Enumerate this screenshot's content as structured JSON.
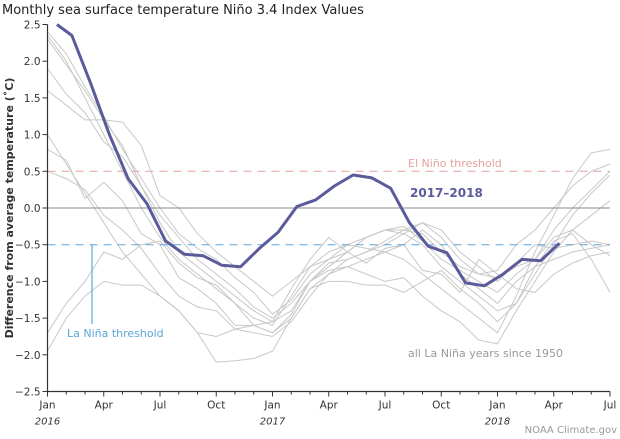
{
  "chart_data": {
    "type": "line",
    "title": "Monthly sea surface temperature Niño 3.4 Index Values",
    "ylabel": "Difference from average temperature (˚C)",
    "xlabel": "",
    "ylim": [
      -2.5,
      2.5
    ],
    "xlim": [
      "2016-01",
      "2018-07"
    ],
    "yticks": [
      "2.5",
      "2.0",
      "1.5",
      "1.0",
      "0.5",
      "0.0",
      "−0.5",
      "−1.0",
      "−1.5",
      "−2.0",
      "−2.5"
    ],
    "ytick_values": [
      2.5,
      2.0,
      1.5,
      1.0,
      0.5,
      0.0,
      -0.5,
      -1.0,
      -1.5,
      -2.0,
      -2.5
    ],
    "xticks": [
      {
        "label": "Jan",
        "year": "2016",
        "date": "2016-01"
      },
      {
        "label": "Apr",
        "year": "",
        "date": "2016-04"
      },
      {
        "label": "Jul",
        "year": "",
        "date": "2016-07"
      },
      {
        "label": "Oct",
        "year": "",
        "date": "2016-10"
      },
      {
        "label": "Jan",
        "year": "2017",
        "date": "2017-01"
      },
      {
        "label": "Apr",
        "year": "",
        "date": "2017-04"
      },
      {
        "label": "Jul",
        "year": "",
        "date": "2017-07"
      },
      {
        "label": "Oct",
        "year": "",
        "date": "2017-10"
      },
      {
        "label": "Jan",
        "year": "2018",
        "date": "2018-01"
      },
      {
        "label": "Apr",
        "year": "",
        "date": "2018-04"
      },
      {
        "label": "Jul",
        "year": "",
        "date": "2018-07"
      }
    ],
    "grid": false,
    "thresholds": [
      {
        "label": "El Niño threshold",
        "value": 0.5,
        "color": "#e8a0a0"
      },
      {
        "label": "La Niña threshold",
        "value": -0.5,
        "color": "#5aa6d8"
      }
    ],
    "highlight": {
      "name": "2017–2018",
      "color": "#5b5b9c",
      "dates": [
        "2016-01",
        "2016-02",
        "2016-03",
        "2016-04",
        "2016-05",
        "2016-06",
        "2016-07",
        "2016-08",
        "2016-09",
        "2016-10",
        "2016-11",
        "2016-12",
        "2017-01",
        "2017-02",
        "2017-03",
        "2017-04",
        "2017-05",
        "2017-06",
        "2017-07",
        "2017-08",
        "2017-09",
        "2017-10",
        "2017-11",
        "2017-12",
        "2018-01",
        "2018-02",
        "2018-03",
        "2018-04"
      ],
      "values": [
        2.5,
        2.35,
        1.7,
        1.0,
        0.4,
        0.06,
        -0.45,
        -0.63,
        -0.65,
        -0.78,
        -0.8,
        -0.55,
        -0.33,
        0.02,
        0.11,
        0.3,
        0.45,
        0.41,
        0.27,
        -0.2,
        -0.52,
        -0.61,
        -1.02,
        -1.06,
        -0.9,
        -0.7,
        -0.72,
        -0.48
      ]
    },
    "background_series": {
      "name": "all La Niña years since 1950",
      "color": "#c8c8c8",
      "start": "2016-01",
      "series": [
        {
          "values": [
            2.35,
            2.0,
            1.5,
            1.0,
            0.5,
            0.0,
            -0.4,
            -0.7,
            -0.9,
            -1.1,
            -1.3,
            -1.5,
            -1.6,
            -1.2,
            -0.8,
            -0.6,
            -0.5,
            -0.55,
            -0.6,
            -0.7,
            -0.9,
            -1.1,
            -1.3,
            -1.5,
            -1.7,
            -1.2,
            -0.6,
            -0.1,
            0.4,
            0.75,
            0.8
          ]
        },
        {
          "values": [
            2.3,
            1.95,
            1.6,
            1.2,
            0.85,
            0.3,
            -0.2,
            -0.6,
            -0.8,
            -1.0,
            -1.2,
            -1.4,
            -1.55,
            -1.4,
            -1.0,
            -0.8,
            -0.6,
            -0.4,
            -0.3,
            -0.35,
            -0.5,
            -0.8,
            -1.0,
            -1.2,
            -1.4,
            -1.3,
            -0.9,
            -0.5,
            -0.1,
            0.2,
            0.45
          ]
        },
        {
          "values": [
            1.9,
            1.55,
            1.3,
            0.9,
            0.7,
            0.3,
            -0.1,
            -0.4,
            -0.7,
            -0.9,
            -1.1,
            -1.35,
            -1.5,
            -1.3,
            -1.0,
            -0.75,
            -0.7,
            -0.6,
            -0.45,
            -0.3,
            -0.2,
            -0.4,
            -0.7,
            -0.9,
            -0.95,
            -0.8,
            -0.7,
            -0.4,
            -0.3,
            -0.1,
            0.1
          ]
        },
        {
          "values": [
            1.6,
            1.4,
            1.2,
            1.2,
            1.17,
            0.85,
            0.17,
            0.0,
            -0.35,
            -0.6,
            -0.8,
            -1.0,
            -1.2,
            -1.0,
            -0.8,
            -0.7,
            -0.6,
            -0.4,
            -0.3,
            -0.3,
            -0.35,
            -0.6,
            -0.8,
            -0.9,
            -0.85,
            -0.5,
            -0.3,
            0.0,
            0.3,
            0.5,
            0.6
          ]
        },
        {
          "values": [
            0.8,
            0.65,
            0.13,
            0.35,
            0.1,
            -0.35,
            -0.5,
            -0.95,
            -1.1,
            -1.3,
            -1.6,
            -1.6,
            -1.7,
            -1.5,
            -1.1,
            -0.9,
            -0.7,
            -0.6,
            -0.5,
            -0.35,
            -0.2,
            -0.3,
            -0.6,
            -0.8,
            -1.0,
            -0.75,
            -0.5,
            -0.55,
            -0.5,
            -0.45,
            -0.5
          ]
        },
        {
          "values": [
            0.5,
            0.4,
            0.25,
            -0.1,
            -0.3,
            -0.55,
            -0.9,
            -1.2,
            -1.35,
            -1.4,
            -1.65,
            -1.7,
            -1.75,
            -1.55,
            -1.2,
            -0.9,
            -0.8,
            -0.7,
            -0.6,
            -0.5,
            -0.3,
            -0.5,
            -0.9,
            -1.1,
            -1.3,
            -1.0,
            -0.8,
            -0.7,
            -0.6,
            -0.55,
            -0.5
          ]
        },
        {
          "values": [
            -1.7,
            -1.3,
            -1.0,
            -0.6,
            -0.7,
            -0.5,
            -0.45,
            -0.75,
            -0.95,
            -1.05,
            -1.3,
            -1.6,
            -1.55,
            -1.1,
            -0.7,
            -0.4,
            -0.6,
            -0.75,
            -0.55,
            -0.5,
            -0.85,
            -0.9,
            -1.15,
            -0.7,
            -0.9,
            -1.1,
            -1.15,
            -0.9,
            -0.75,
            -0.65,
            -0.6
          ]
        },
        {
          "values": [
            -1.95,
            -1.5,
            -1.2,
            -1.0,
            -1.05,
            -1.05,
            -1.2,
            -1.4,
            -1.7,
            -1.75,
            -1.65,
            -1.6,
            -1.7,
            -1.45,
            -1.0,
            -0.85,
            -0.8,
            -0.9,
            -1.0,
            -0.95,
            -1.2,
            -1.4,
            -1.55,
            -1.8,
            -1.85,
            -1.4,
            -1.0,
            -0.6,
            -0.3,
            -0.5,
            -0.65
          ]
        },
        {
          "values": [
            1.0,
            0.6,
            0.2,
            -0.2,
            -0.6,
            -0.9,
            -1.2,
            -1.4,
            -1.7,
            -2.1,
            -2.08,
            -2.05,
            -1.95,
            -1.5,
            -1.1,
            -1.0,
            -1.0,
            -1.05,
            -1.05,
            -1.15,
            -1.0,
            -0.85,
            -1.1,
            -1.3,
            -1.55,
            -1.3,
            -0.8,
            -0.45,
            -0.35,
            -0.7,
            -1.15
          ]
        },
        {
          "values": [
            2.4,
            2.1,
            1.65,
            1.25,
            0.8,
            0.4,
            0.0,
            -0.35,
            -0.55,
            -0.7,
            -0.95,
            -1.15,
            -1.45,
            -1.25,
            -0.9,
            -0.7,
            -0.5,
            -0.4,
            -0.3,
            -0.25,
            -0.45,
            -0.7,
            -0.85,
            -1.0,
            -1.15,
            -0.9,
            -0.7,
            -0.3,
            0.0,
            0.25,
            0.5
          ]
        }
      ]
    },
    "credit": "NOAA Climate.gov"
  }
}
